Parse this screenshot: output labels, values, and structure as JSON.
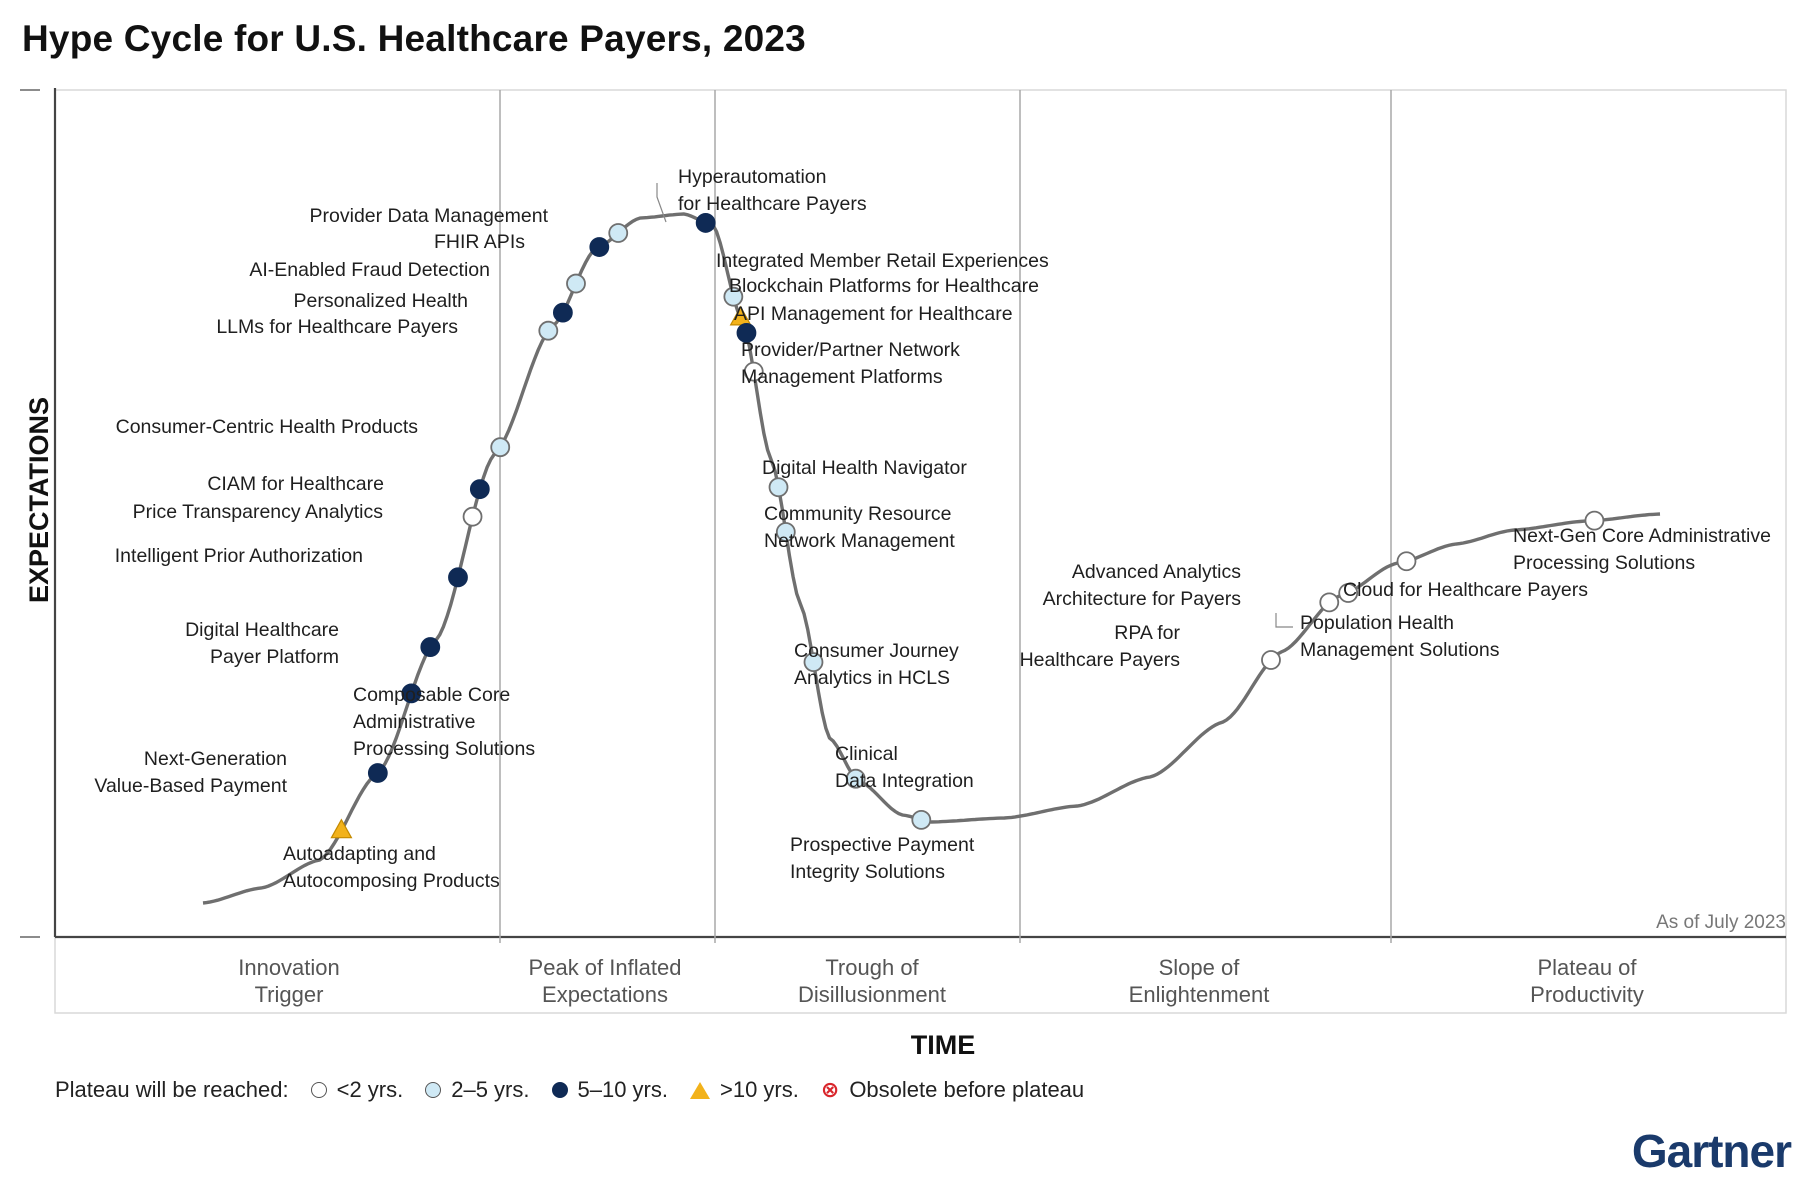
{
  "title": "Hype Cycle for U.S. Healthcare Payers, 2023",
  "chart_data": {
    "type": "hype-cycle",
    "title": "Hype Cycle for U.S. Healthcare Payers, 2023",
    "ylabel": "EXPECTATIONS",
    "xlabel": "TIME",
    "as_of": "As of July 2023",
    "phases": [
      [
        "Innovation",
        "Trigger"
      ],
      [
        "Peak of Inflated",
        "Expectations"
      ],
      [
        "Trough of",
        "Disillusionment"
      ],
      [
        "Slope of",
        "Enlightenment"
      ],
      [
        "Plateau of",
        "Productivity"
      ]
    ],
    "technologies": [
      {
        "name": [
          "Autoadapting and",
          "Autocomposing Products"
        ],
        "time": 9.5,
        "plateau": ">10"
      },
      {
        "name": [
          "Next-Generation",
          "Value-Based Payment"
        ],
        "time": 12.0,
        "plateau": "5-10"
      },
      {
        "name": [
          "Composable Core",
          "Administrative",
          "Processing Solutions"
        ],
        "time": 14.3,
        "plateau": "5-10"
      },
      {
        "name": [
          "Digital Healthcare",
          "Payer Platform"
        ],
        "time": 15.6,
        "plateau": "5-10"
      },
      {
        "name": [
          "Intelligent Prior Authorization"
        ],
        "time": 17.5,
        "plateau": "5-10"
      },
      {
        "name": [
          "Price Transparency Analytics"
        ],
        "time": 18.5,
        "plateau": "<2"
      },
      {
        "name": [
          "CIAM for Healthcare"
        ],
        "time": 19.0,
        "plateau": "5-10"
      },
      {
        "name": [
          "Consumer-Centric Health Products"
        ],
        "time": 20.4,
        "plateau": "2-5"
      },
      {
        "name": [
          "LLMs for Healthcare Payers"
        ],
        "time": 23.7,
        "plateau": "2-5"
      },
      {
        "name": [
          "Personalized Health"
        ],
        "time": 24.7,
        "plateau": "5-10"
      },
      {
        "name": [
          "AI-Enabled Fraud Detection"
        ],
        "time": 25.6,
        "plateau": "2-5"
      },
      {
        "name": [
          "FHIR APIs"
        ],
        "time": 27.2,
        "plateau": "5-10"
      },
      {
        "name": [
          "Provider Data Management"
        ],
        "time": 28.5,
        "plateau": "2-5"
      },
      {
        "name": [
          "Hyperautomation",
          "for Healthcare Payers"
        ],
        "time": 34.5,
        "plateau": "5-10"
      },
      {
        "name": [
          "Integrated Member Retail Experiences"
        ],
        "time": 36.4,
        "plateau": "2-5"
      },
      {
        "name": [
          "Blockchain Platforms for Healthcare"
        ],
        "time": 36.9,
        "plateau": ">10"
      },
      {
        "name": [
          "API Management for Healthcare"
        ],
        "time": 37.3,
        "plateau": "5-10"
      },
      {
        "name": [
          "Provider/Partner Network",
          "Management Platforms"
        ],
        "time": 37.8,
        "plateau": "<2"
      },
      {
        "name": [
          "Digital Health Navigator"
        ],
        "time": 39.5,
        "plateau": "2-5"
      },
      {
        "name": [
          "Community Resource",
          "Network Management"
        ],
        "time": 40.0,
        "plateau": "2-5"
      },
      {
        "name": [
          "Consumer Journey",
          "Analytics in HCLS"
        ],
        "time": 41.9,
        "plateau": "2-5"
      },
      {
        "name": [
          "Clinical",
          "Data Integration"
        ],
        "time": 44.8,
        "plateau": "2-5"
      },
      {
        "name": [
          "Prospective Payment",
          "Integrity Solutions"
        ],
        "time": 49.3,
        "plateau": "2-5"
      },
      {
        "name": [
          "RPA for",
          "Healthcare Payers"
        ],
        "time": 73.3,
        "plateau": "<2"
      },
      {
        "name": [
          "Advanced Analytics",
          "Architecture for Payers"
        ],
        "time": 77.3,
        "plateau": "<2"
      },
      {
        "name": [
          "Population Health",
          "Management Solutions"
        ],
        "time": 78.6,
        "plateau": "<2"
      },
      {
        "name": [
          "Cloud for Healthcare Payers"
        ],
        "time": 82.6,
        "plateau": "<2"
      },
      {
        "name": [
          "Next-Gen Core Administrative",
          "Processing Solutions"
        ],
        "time": 95.5,
        "plateau": "<2"
      }
    ],
    "legend": {
      "title": "Plateau will be reached:",
      "items": [
        {
          "key": "<2",
          "label": "<2 yrs."
        },
        {
          "key": "2-5",
          "label": "2–5 yrs."
        },
        {
          "key": "5-10",
          "label": "5–10 yrs."
        },
        {
          "key": ">10",
          "label": ">10 yrs."
        },
        {
          "key": "obsolete",
          "label": "Obsolete before plateau"
        }
      ]
    },
    "colors": {
      "<2": "#ffffff",
      "2-5": "#cfe9f5",
      "5-10": "#0f2a55",
      ">10": "#f2b21b",
      "obsolete": "#d9262c",
      "curve": "#6f6f6f"
    }
  },
  "brand": "Gartner"
}
